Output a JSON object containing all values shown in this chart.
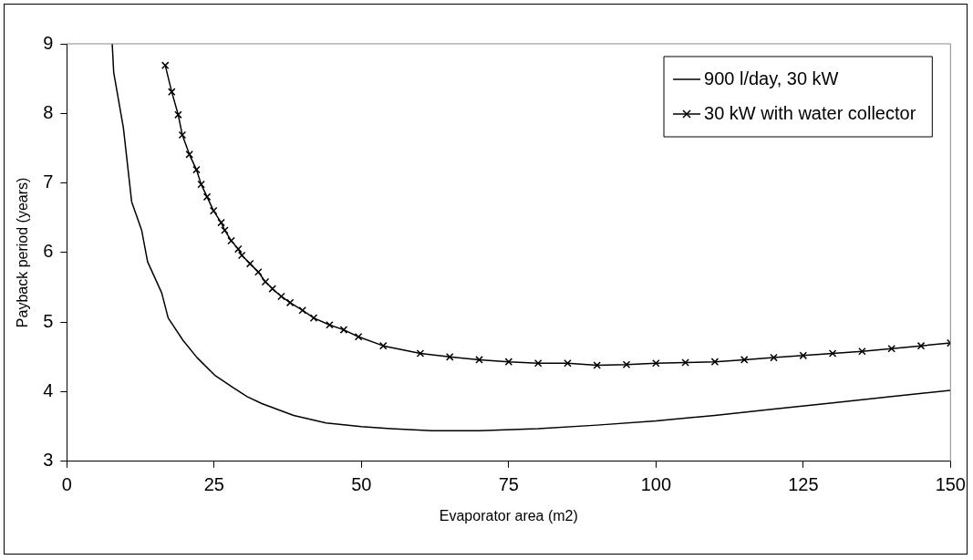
{
  "chart_data": {
    "type": "line",
    "xlabel": "Evaporator area (m2)",
    "ylabel": "Payback period (years)",
    "xlim": [
      0,
      150
    ],
    "xticks": [
      0,
      25,
      50,
      75,
      100,
      125,
      150
    ],
    "ylim": [
      3,
      9
    ],
    "yticks": [
      3,
      4,
      5,
      6,
      7,
      8,
      9
    ],
    "grid": false,
    "legend": "top right",
    "series": [
      {
        "name": "900 l/day, 30 kW",
        "color": "#000000",
        "marker": "none",
        "x": [
          7.7,
          7.95,
          9.6,
          11.0,
          12.7,
          13.7,
          16.1,
          17.2,
          19.7,
          22.1,
          25.2,
          28.2,
          30.6,
          33.1,
          38.5,
          44,
          50,
          55,
          62,
          70,
          80,
          90,
          100,
          110,
          120,
          130,
          140,
          150
        ],
        "values": [
          9,
          8.59,
          7.79,
          6.73,
          6.32,
          5.87,
          5.42,
          5.06,
          4.74,
          4.49,
          4.23,
          4.06,
          3.93,
          3.83,
          3.66,
          3.55,
          3.5,
          3.47,
          3.44,
          3.44,
          3.47,
          3.52,
          3.58,
          3.66,
          3.75,
          3.84,
          3.93,
          4.02
        ]
      },
      {
        "name": "30 kW with water collector",
        "color": "#000000",
        "marker": "cross",
        "x": [
          16.7,
          17.8,
          18.9,
          19.6,
          20.8,
          22.0,
          22.8,
          23.8,
          24.9,
          26.2,
          26.8,
          27.9,
          29.1,
          29.7,
          31.1,
          32.5,
          33.7,
          34.9,
          36.4,
          37.9,
          40.0,
          41.9,
          44.6,
          47.0,
          49.5,
          53.7,
          60,
          65,
          70,
          75,
          80,
          85,
          90,
          95,
          100,
          105,
          110,
          115,
          120,
          125,
          130,
          135,
          140,
          145,
          150
        ],
        "values": [
          8.69,
          8.31,
          7.98,
          7.69,
          7.41,
          7.19,
          6.98,
          6.8,
          6.6,
          6.43,
          6.32,
          6.17,
          6.05,
          5.96,
          5.84,
          5.72,
          5.58,
          5.48,
          5.37,
          5.28,
          5.17,
          5.06,
          4.96,
          4.89,
          4.79,
          4.66,
          4.55,
          4.5,
          4.46,
          4.43,
          4.41,
          4.41,
          4.38,
          4.39,
          4.41,
          4.42,
          4.43,
          4.46,
          4.49,
          4.52,
          4.55,
          4.58,
          4.62,
          4.66,
          4.7
        ]
      }
    ]
  }
}
